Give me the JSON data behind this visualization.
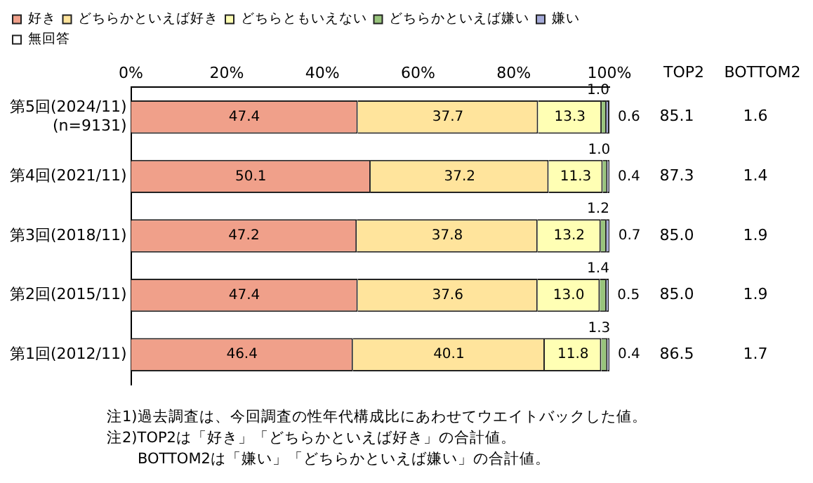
{
  "chart_data": {
    "type": "bar",
    "orientation": "horizontal",
    "stacked": true,
    "grid": false,
    "legend": "top left",
    "categories": [
      "第5回(2024/11)\n(n=9131)",
      "第4回(2021/11)",
      "第3回(2018/11)",
      "第2回(2015/11)",
      "第1回(2012/11)"
    ],
    "xlim": [
      0,
      100
    ],
    "xticks": [
      {
        "value": 0,
        "label": "0%"
      },
      {
        "value": 20,
        "label": "20%"
      },
      {
        "value": 40,
        "label": "40%"
      },
      {
        "value": 60,
        "label": "60%"
      },
      {
        "value": 80,
        "label": "80%"
      },
      {
        "value": 100,
        "label": "100%"
      }
    ],
    "series": [
      {
        "name": "好き",
        "color": "#f0a08a",
        "values": [
          47.4,
          50.1,
          47.2,
          47.4,
          46.4
        ],
        "value_labels": [
          "47.4",
          "50.1",
          "47.2",
          "47.4",
          "46.4"
        ]
      },
      {
        "name": "どちらかといえば好き",
        "color": "#ffe49c",
        "values": [
          37.7,
          37.2,
          37.8,
          37.6,
          40.1
        ],
        "value_labels": [
          "37.7",
          "37.2",
          "37.8",
          "37.6",
          "40.1"
        ]
      },
      {
        "name": "どちらともいえない",
        "color": "#ffffb4",
        "values": [
          13.3,
          11.3,
          13.2,
          13.0,
          11.8
        ],
        "value_labels": [
          "13.3",
          "11.3",
          "13.2",
          "13.0",
          "11.8"
        ]
      },
      {
        "name": "どちらかといえば嫌い",
        "color": "#98c47c",
        "values": [
          1.0,
          1.0,
          1.2,
          1.4,
          1.3
        ],
        "value_labels": [
          "1.0",
          "1.0",
          "1.2",
          "1.4",
          "1.3"
        ]
      },
      {
        "name": "嫌い",
        "color": "#a4aad8",
        "values": [
          0.6,
          0.4,
          0.7,
          0.5,
          0.4
        ],
        "value_labels": [
          "0.6",
          "0.4",
          "0.7",
          "0.5",
          "0.4"
        ]
      },
      {
        "name": "無回答",
        "color": "#ffffff",
        "values": [
          null,
          null,
          null,
          null,
          null
        ]
      }
    ],
    "annotations": [
      "TOP2",
      "BOTTOM2",
      "85.1",
      "1.6",
      "87.3",
      "1.4",
      "85.0",
      "1.9",
      "85.0",
      "1.9",
      "86.5",
      "1.7",
      "注1)過去調査は、今回調査の性年代構成比にあわせてウエイトバックした値。",
      "注2)TOP2は「好き」「どちらかといえば好き」の合計値。",
      "BOTTOM2は「嫌い」「どちらかといえば嫌い」の合計値。"
    ]
  }
}
